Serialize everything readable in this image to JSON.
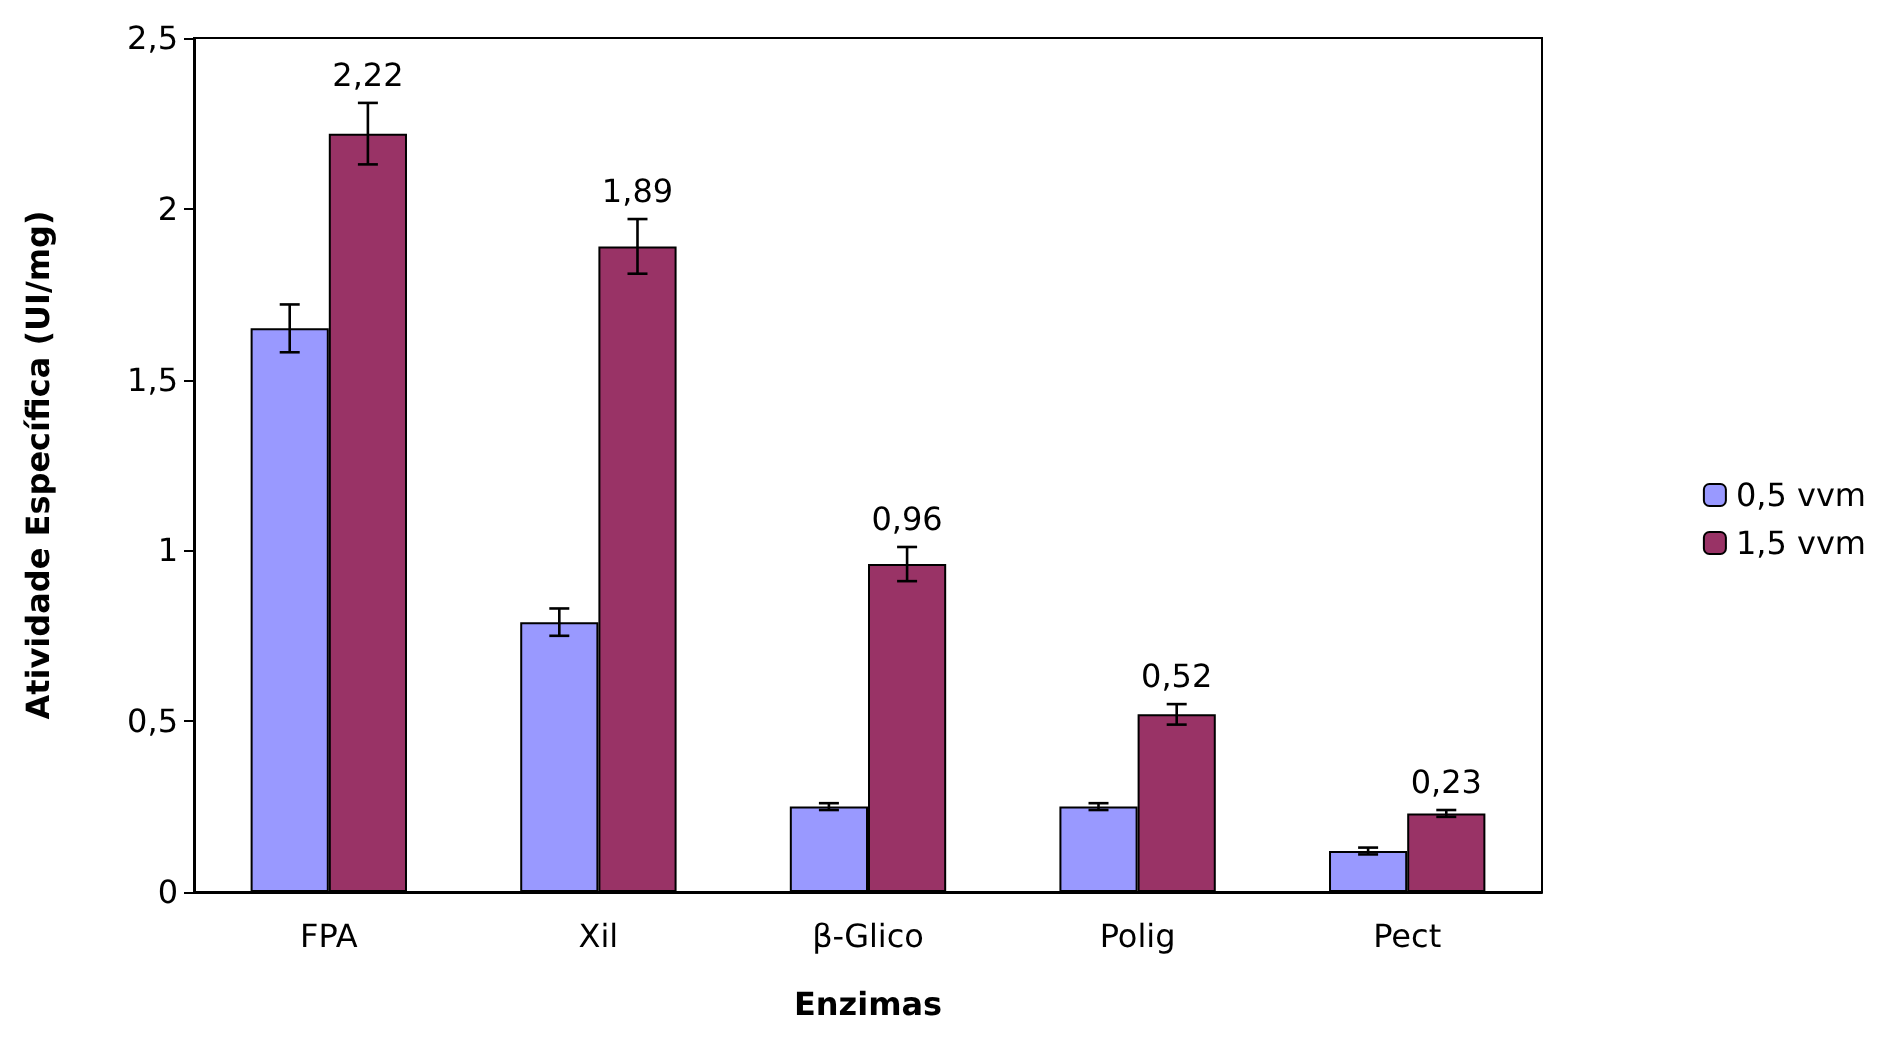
{
  "chart_data": {
    "type": "bar",
    "xlabel": "Enzimas",
    "ylabel": "Atividade Específica (UI/mg)",
    "categories": [
      "FPA",
      "Xil",
      "β-Glico",
      "Polig",
      "Pect"
    ],
    "series": [
      {
        "name": "0,5 vvm",
        "color": "#9999ff",
        "values": [
          1.65,
          0.79,
          0.25,
          0.25,
          0.12
        ],
        "errors": [
          0.07,
          0.04,
          0.01,
          0.01,
          0.01
        ]
      },
      {
        "name": "1,5 vvm",
        "color": "#993366",
        "values": [
          2.22,
          1.89,
          0.96,
          0.52,
          0.23
        ],
        "errors": [
          0.09,
          0.08,
          0.05,
          0.03,
          0.01
        ],
        "value_labels": [
          "2,22",
          "1,89",
          "0,96",
          "0,52",
          "0,23"
        ]
      }
    ],
    "ylim": [
      0,
      2.5
    ],
    "yticks": [
      {
        "value": 0,
        "label": "0"
      },
      {
        "value": 0.5,
        "label": "0,5"
      },
      {
        "value": 1,
        "label": "1"
      },
      {
        "value": 1.5,
        "label": "1,5"
      },
      {
        "value": 2,
        "label": "2"
      },
      {
        "value": 2.5,
        "label": "2,5"
      }
    ],
    "grid": false,
    "legend": "right"
  }
}
